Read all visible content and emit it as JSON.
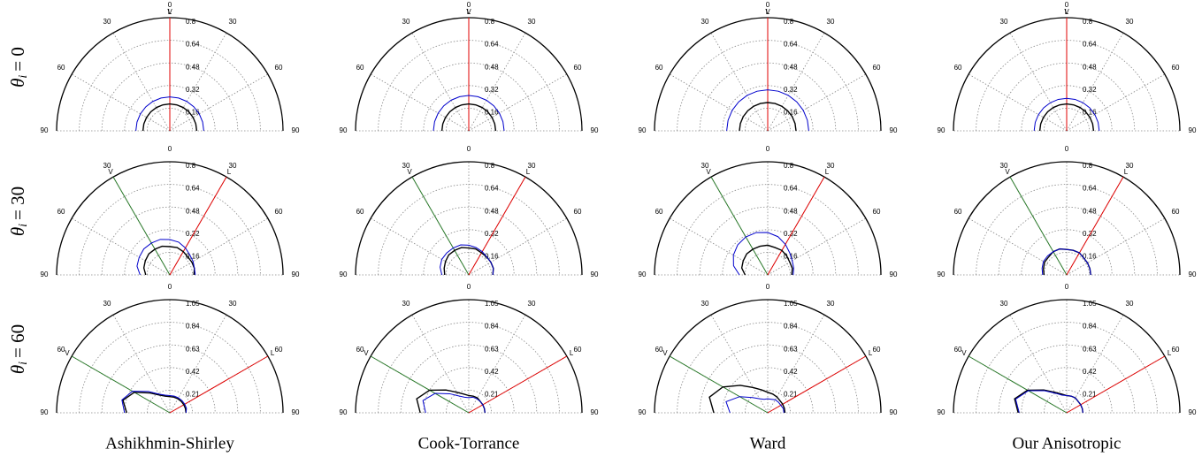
{
  "columns": [
    "Ashikhmin-Shirley",
    "Cook-Torrance",
    "Ward",
    "Our Anisotropic"
  ],
  "rows": [
    {
      "symbol": "θ",
      "sub": "i",
      "eq": "= 0"
    },
    {
      "symbol": "θ",
      "sub": "i",
      "eq": "= 30"
    },
    {
      "symbol": "θ",
      "sub": "i",
      "eq": "= 60"
    }
  ],
  "chart_data": [
    {
      "type": "polar",
      "thetalim": [
        -90,
        90
      ],
      "thetaticks": [
        {
          "value": -90,
          "label": "90"
        },
        {
          "value": -60,
          "label": "60"
        },
        {
          "value": -30,
          "label": "30"
        },
        0,
        30,
        60,
        90
      ],
      "rlim": [
        0,
        0.8
      ],
      "rticks": [
        0.16,
        0.32,
        0.48,
        0.64,
        0.8
      ],
      "light": {
        "label": "L",
        "angle": 0,
        "color": "#e00000"
      },
      "view": {
        "label": "V",
        "angle": 0,
        "color": "#2a7a2a"
      },
      "x": [
        -90,
        -75,
        -60,
        -45,
        -30,
        -15,
        0,
        15,
        30,
        45,
        60,
        75,
        90
      ],
      "series": [
        {
          "color": "#000000",
          "values": [
            0.19,
            0.19,
            0.19,
            0.19,
            0.19,
            0.19,
            0.19,
            0.19,
            0.19,
            0.19,
            0.19,
            0.19,
            0.19
          ]
        },
        {
          "color": "#0000cc",
          "values": [
            0.24,
            0.24,
            0.24,
            0.24,
            0.24,
            0.24,
            0.24,
            0.24,
            0.24,
            0.24,
            0.24,
            0.24,
            0.24
          ]
        }
      ]
    },
    {
      "type": "polar",
      "thetalim": [
        -90,
        90
      ],
      "thetaticks": [
        {
          "value": -90,
          "label": "90"
        },
        {
          "value": -60,
          "label": "60"
        },
        {
          "value": -30,
          "label": "30"
        },
        0,
        30,
        60,
        90
      ],
      "rlim": [
        0,
        0.8
      ],
      "rticks": [
        0.16,
        0.32,
        0.48,
        0.64,
        0.8
      ],
      "light": {
        "label": "L",
        "angle": 0,
        "color": "#e00000"
      },
      "view": {
        "label": "V",
        "angle": 0,
        "color": "#2a7a2a"
      },
      "x": [
        -90,
        -75,
        -60,
        -45,
        -30,
        -15,
        0,
        15,
        30,
        45,
        60,
        75,
        90
      ],
      "series": [
        {
          "color": "#000000",
          "values": [
            0.19,
            0.19,
            0.19,
            0.19,
            0.19,
            0.19,
            0.19,
            0.19,
            0.19,
            0.19,
            0.19,
            0.19,
            0.19
          ]
        },
        {
          "color": "#0000cc",
          "values": [
            0.25,
            0.25,
            0.25,
            0.25,
            0.25,
            0.25,
            0.25,
            0.25,
            0.25,
            0.25,
            0.25,
            0.25,
            0.25
          ]
        }
      ]
    },
    {
      "type": "polar",
      "thetalim": [
        -90,
        90
      ],
      "thetaticks": [
        {
          "value": -90,
          "label": "90"
        },
        {
          "value": -60,
          "label": "60"
        },
        {
          "value": -30,
          "label": "30"
        },
        0,
        30,
        60,
        90
      ],
      "rlim": [
        0,
        0.8
      ],
      "rticks": [
        0.16,
        0.32,
        0.48,
        0.64,
        0.8
      ],
      "light": {
        "label": "L",
        "angle": 0,
        "color": "#e00000"
      },
      "view": {
        "label": "V",
        "angle": 0,
        "color": "#2a7a2a"
      },
      "x": [
        -90,
        -75,
        -60,
        -45,
        -30,
        -15,
        0,
        15,
        30,
        45,
        60,
        75,
        90
      ],
      "series": [
        {
          "color": "#000000",
          "values": [
            0.2,
            0.2,
            0.2,
            0.2,
            0.2,
            0.2,
            0.2,
            0.2,
            0.2,
            0.2,
            0.2,
            0.2,
            0.2
          ]
        },
        {
          "color": "#0000cc",
          "values": [
            0.29,
            0.29,
            0.29,
            0.29,
            0.29,
            0.29,
            0.29,
            0.29,
            0.29,
            0.29,
            0.29,
            0.29,
            0.29
          ]
        }
      ]
    },
    {
      "type": "polar",
      "thetalim": [
        -90,
        90
      ],
      "thetaticks": [
        {
          "value": -90,
          "label": "90"
        },
        {
          "value": -60,
          "label": "60"
        },
        {
          "value": -30,
          "label": "30"
        },
        0,
        30,
        60,
        90
      ],
      "rlim": [
        0,
        0.8
      ],
      "rticks": [
        0.16,
        0.32,
        0.48,
        0.64,
        0.8
      ],
      "light": {
        "label": "L",
        "angle": 0,
        "color": "#e00000"
      },
      "view": {
        "label": "V",
        "angle": 0,
        "color": "#2a7a2a"
      },
      "x": [
        -90,
        -75,
        -60,
        -45,
        -30,
        -15,
        0,
        15,
        30,
        45,
        60,
        75,
        90
      ],
      "series": [
        {
          "color": "#000000",
          "values": [
            0.19,
            0.19,
            0.19,
            0.19,
            0.19,
            0.19,
            0.19,
            0.19,
            0.19,
            0.19,
            0.19,
            0.19,
            0.19
          ]
        },
        {
          "color": "#0000cc",
          "values": [
            0.23,
            0.23,
            0.23,
            0.23,
            0.23,
            0.23,
            0.23,
            0.23,
            0.23,
            0.23,
            0.23,
            0.23,
            0.23
          ]
        }
      ]
    },
    {
      "type": "polar",
      "thetalim": [
        -90,
        90
      ],
      "thetaticks": [
        {
          "value": -90,
          "label": "90"
        },
        {
          "value": -60,
          "label": "60"
        },
        {
          "value": -30,
          "label": "30"
        },
        0,
        30,
        60,
        90
      ],
      "rlim": [
        0,
        0.8
      ],
      "rticks": [
        0.16,
        0.32,
        0.48,
        0.64,
        0.8
      ],
      "light": {
        "label": "L",
        "angle": 30,
        "color": "#e00000"
      },
      "view": {
        "label": "V",
        "angle": -30,
        "color": "#2a7a2a"
      },
      "x": [
        -90,
        -75,
        -60,
        -45,
        -30,
        -15,
        0,
        15,
        30,
        45,
        60,
        75,
        90
      ],
      "series": [
        {
          "color": "#000000",
          "values": [
            0.17,
            0.19,
            0.2,
            0.21,
            0.21,
            0.21,
            0.2,
            0.2,
            0.19,
            0.18,
            0.18,
            0.18,
            0.17
          ]
        },
        {
          "color": "#0000cc",
          "values": [
            0.21,
            0.24,
            0.25,
            0.26,
            0.26,
            0.26,
            0.25,
            0.24,
            0.22,
            0.2,
            0.19,
            0.18,
            0.18
          ]
        }
      ]
    },
    {
      "type": "polar",
      "thetalim": [
        -90,
        90
      ],
      "thetaticks": [
        {
          "value": -90,
          "label": "90"
        },
        {
          "value": -60,
          "label": "60"
        },
        {
          "value": -30,
          "label": "30"
        },
        0,
        30,
        60,
        90
      ],
      "rlim": [
        0,
        0.8
      ],
      "rticks": [
        0.16,
        0.32,
        0.48,
        0.64,
        0.8
      ],
      "light": {
        "label": "L",
        "angle": 30,
        "color": "#e00000"
      },
      "view": {
        "label": "V",
        "angle": -30,
        "color": "#2a7a2a"
      },
      "x": [
        -90,
        -75,
        -60,
        -45,
        -30,
        -15,
        0,
        15,
        30,
        45,
        60,
        75,
        90
      ],
      "series": [
        {
          "color": "#000000",
          "values": [
            0.17,
            0.18,
            0.19,
            0.2,
            0.2,
            0.2,
            0.19,
            0.19,
            0.18,
            0.18,
            0.18,
            0.18,
            0.17
          ]
        },
        {
          "color": "#0000cc",
          "values": [
            0.19,
            0.21,
            0.22,
            0.22,
            0.22,
            0.22,
            0.21,
            0.2,
            0.19,
            0.18,
            0.18,
            0.18,
            0.17
          ]
        }
      ]
    },
    {
      "type": "polar",
      "thetalim": [
        -90,
        90
      ],
      "thetaticks": [
        {
          "value": -90,
          "label": "90"
        },
        {
          "value": -60,
          "label": "60"
        },
        {
          "value": -30,
          "label": "30"
        },
        0,
        30,
        60,
        90
      ],
      "rlim": [
        0,
        0.8
      ],
      "rticks": [
        0.16,
        0.32,
        0.48,
        0.64,
        0.8
      ],
      "light": {
        "label": "L",
        "angle": 30,
        "color": "#e00000"
      },
      "view": {
        "label": "V",
        "angle": -30,
        "color": "#2a7a2a"
      },
      "x": [
        -90,
        -75,
        -60,
        -45,
        -30,
        -15,
        0,
        15,
        30,
        45,
        60,
        75,
        90
      ],
      "series": [
        {
          "color": "#000000",
          "values": [
            0.16,
            0.19,
            0.2,
            0.21,
            0.21,
            0.21,
            0.21,
            0.2,
            0.2,
            0.19,
            0.18,
            0.18,
            0.17
          ]
        },
        {
          "color": "#0000cc",
          "values": [
            0.2,
            0.25,
            0.28,
            0.3,
            0.31,
            0.31,
            0.3,
            0.28,
            0.25,
            0.22,
            0.2,
            0.19,
            0.18
          ]
        }
      ]
    },
    {
      "type": "polar",
      "thetalim": [
        -90,
        90
      ],
      "thetaticks": [
        {
          "value": -90,
          "label": "90"
        },
        {
          "value": -60,
          "label": "60"
        },
        {
          "value": -30,
          "label": "30"
        },
        0,
        30,
        60,
        90
      ],
      "rlim": [
        0,
        0.8
      ],
      "rticks": [
        0.16,
        0.32,
        0.48,
        0.64,
        0.8
      ],
      "light": {
        "label": "L",
        "angle": 30,
        "color": "#e00000"
      },
      "view": {
        "label": "V",
        "angle": -30,
        "color": "#2a7a2a"
      },
      "x": [
        -90,
        -75,
        -60,
        -45,
        -30,
        -15,
        0,
        15,
        30,
        45,
        60,
        75,
        90
      ],
      "series": [
        {
          "color": "#000000",
          "values": [
            0.16,
            0.17,
            0.18,
            0.18,
            0.19,
            0.19,
            0.18,
            0.18,
            0.18,
            0.17,
            0.17,
            0.17,
            0.17
          ]
        },
        {
          "color": "#0000cc",
          "values": [
            0.17,
            0.18,
            0.19,
            0.19,
            0.19,
            0.19,
            0.18,
            0.18,
            0.18,
            0.17,
            0.17,
            0.17,
            0.17
          ]
        }
      ]
    },
    {
      "type": "polar",
      "thetalim": [
        -90,
        90
      ],
      "thetaticks": [
        {
          "value": -90,
          "label": "90"
        },
        {
          "value": -60,
          "label": "60"
        },
        {
          "value": -30,
          "label": "30"
        },
        0,
        30,
        60,
        90
      ],
      "rlim": [
        0,
        1.05
      ],
      "rticks": [
        0.21,
        0.42,
        0.63,
        0.84,
        1.05
      ],
      "light": {
        "label": "L",
        "angle": 60,
        "color": "#e00000"
      },
      "view": {
        "label": "V",
        "angle": -60,
        "color": "#2a7a2a"
      },
      "x": [
        -90,
        -75,
        -60,
        -45,
        -30,
        -15,
        0,
        15,
        30,
        45,
        60,
        75,
        90
      ],
      "series": [
        {
          "color": "#000000",
          "values": [
            0.4,
            0.45,
            0.38,
            0.26,
            0.19,
            0.16,
            0.15,
            0.15,
            0.15,
            0.15,
            0.15,
            0.15,
            0.15
          ]
        },
        {
          "color": "#0000cc",
          "values": [
            0.42,
            0.46,
            0.4,
            0.28,
            0.2,
            0.17,
            0.16,
            0.16,
            0.16,
            0.16,
            0.16,
            0.16,
            0.15
          ]
        }
      ]
    },
    {
      "type": "polar",
      "thetalim": [
        -90,
        90
      ],
      "thetaticks": [
        {
          "value": -90,
          "label": "90"
        },
        {
          "value": -60,
          "label": "60"
        },
        {
          "value": -30,
          "label": "30"
        },
        0,
        30,
        60,
        90
      ],
      "rlim": [
        0,
        1.05
      ],
      "rticks": [
        0.21,
        0.42,
        0.63,
        0.84,
        1.05
      ],
      "light": {
        "label": "L",
        "angle": 60,
        "color": "#e00000"
      },
      "view": {
        "label": "V",
        "angle": -60,
        "color": "#2a7a2a"
      },
      "x": [
        -90,
        -75,
        -60,
        -45,
        -30,
        -15,
        0,
        15,
        30,
        45,
        60,
        75,
        90
      ],
      "series": [
        {
          "color": "#000000",
          "values": [
            0.45,
            0.5,
            0.42,
            0.3,
            0.22,
            0.18,
            0.16,
            0.16,
            0.16,
            0.15,
            0.15,
            0.15,
            0.15
          ]
        },
        {
          "color": "#0000cc",
          "values": [
            0.4,
            0.44,
            0.36,
            0.25,
            0.18,
            0.15,
            0.14,
            0.15,
            0.15,
            0.15,
            0.15,
            0.15,
            0.15
          ]
        }
      ]
    },
    {
      "type": "polar",
      "thetalim": [
        -90,
        90
      ],
      "thetaticks": [
        {
          "value": -90,
          "label": "90"
        },
        {
          "value": -60,
          "label": "60"
        },
        {
          "value": -30,
          "label": "30"
        },
        0,
        30,
        60,
        90
      ],
      "rlim": [
        0,
        1.05
      ],
      "rticks": [
        0.21,
        0.42,
        0.63,
        0.84,
        1.05
      ],
      "light": {
        "label": "L",
        "angle": 60,
        "color": "#e00000"
      },
      "view": {
        "label": "V",
        "angle": -60,
        "color": "#2a7a2a"
      },
      "x": [
        -90,
        -75,
        -60,
        -45,
        -30,
        -15,
        0,
        15,
        30,
        45,
        60,
        75,
        90
      ],
      "series": [
        {
          "color": "#000000",
          "values": [
            0.5,
            0.56,
            0.48,
            0.36,
            0.27,
            0.22,
            0.19,
            0.18,
            0.17,
            0.16,
            0.16,
            0.16,
            0.16
          ]
        },
        {
          "color": "#0000cc",
          "values": [
            0.35,
            0.4,
            0.3,
            0.2,
            0.15,
            0.13,
            0.13,
            0.13,
            0.14,
            0.14,
            0.14,
            0.15,
            0.15
          ]
        }
      ]
    },
    {
      "type": "polar",
      "thetalim": [
        -90,
        90
      ],
      "thetaticks": [
        {
          "value": -90,
          "label": "90"
        },
        {
          "value": -60,
          "label": "60"
        },
        {
          "value": -30,
          "label": "30"
        },
        0,
        30,
        60,
        90
      ],
      "rlim": [
        0,
        1.05
      ],
      "rticks": [
        0.21,
        0.42,
        0.63,
        0.84,
        1.05
      ],
      "light": {
        "label": "L",
        "angle": 60,
        "color": "#e00000"
      },
      "view": {
        "label": "V",
        "angle": -60,
        "color": "#2a7a2a"
      },
      "x": [
        -90,
        -75,
        -60,
        -45,
        -30,
        -15,
        0,
        15,
        30,
        45,
        60,
        75,
        90
      ],
      "series": [
        {
          "color": "#000000",
          "values": [
            0.45,
            0.5,
            0.42,
            0.3,
            0.22,
            0.18,
            0.16,
            0.16,
            0.16,
            0.15,
            0.15,
            0.15,
            0.15
          ]
        },
        {
          "color": "#0000cc",
          "values": [
            0.44,
            0.49,
            0.41,
            0.29,
            0.21,
            0.17,
            0.16,
            0.16,
            0.16,
            0.15,
            0.15,
            0.15,
            0.15
          ]
        }
      ]
    }
  ]
}
